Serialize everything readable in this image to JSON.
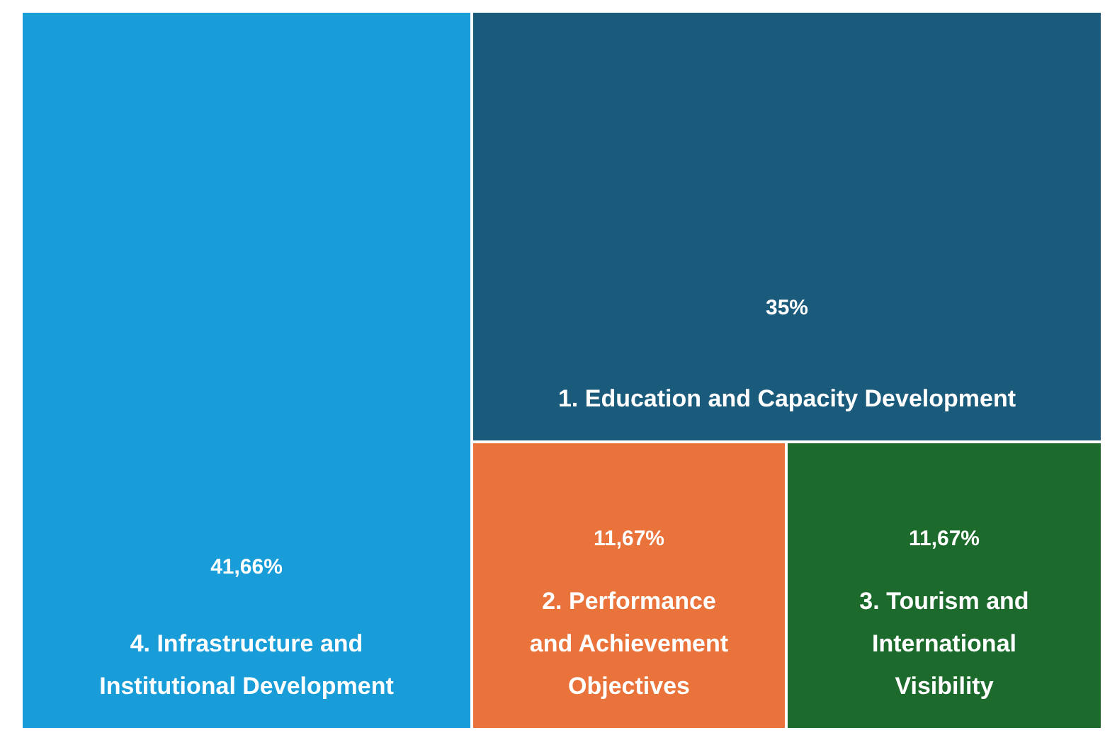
{
  "chart_data": {
    "type": "other",
    "categories": [
      "4. Infrastructure and\nInstitutional Development",
      "1. Education and Capacity Development",
      "2. Performance\nand Achievement\nObjectives",
      "3. Tourism and\nInternational\nVisibility"
    ],
    "values": [
      41.66,
      35,
      11.67,
      11.67
    ],
    "value_labels": [
      "41,66%",
      "35%",
      "11,67%",
      "11,67%"
    ],
    "colors": [
      "#199dd9",
      "#1a5a7b",
      "#e9733a",
      "#1d6a2d"
    ]
  }
}
